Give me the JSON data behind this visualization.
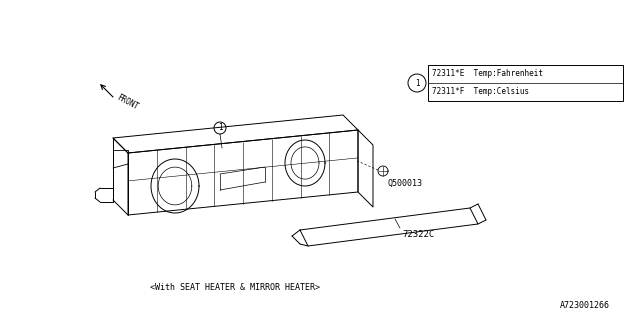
{
  "bg_color": "#ffffff",
  "bottom_text": "<With SEAT HEATER & MIRROR HEATER>",
  "part_number_label": "A723001266",
  "legend_line1": "72311*E  Temp:Fahrenheit",
  "legend_line2": "72311*F  Temp:Celsius",
  "label_q500013": "Q500013",
  "label_72322c": "72322C",
  "label_front": "FRONT",
  "text_color": "#000000",
  "line_color": "#000000"
}
